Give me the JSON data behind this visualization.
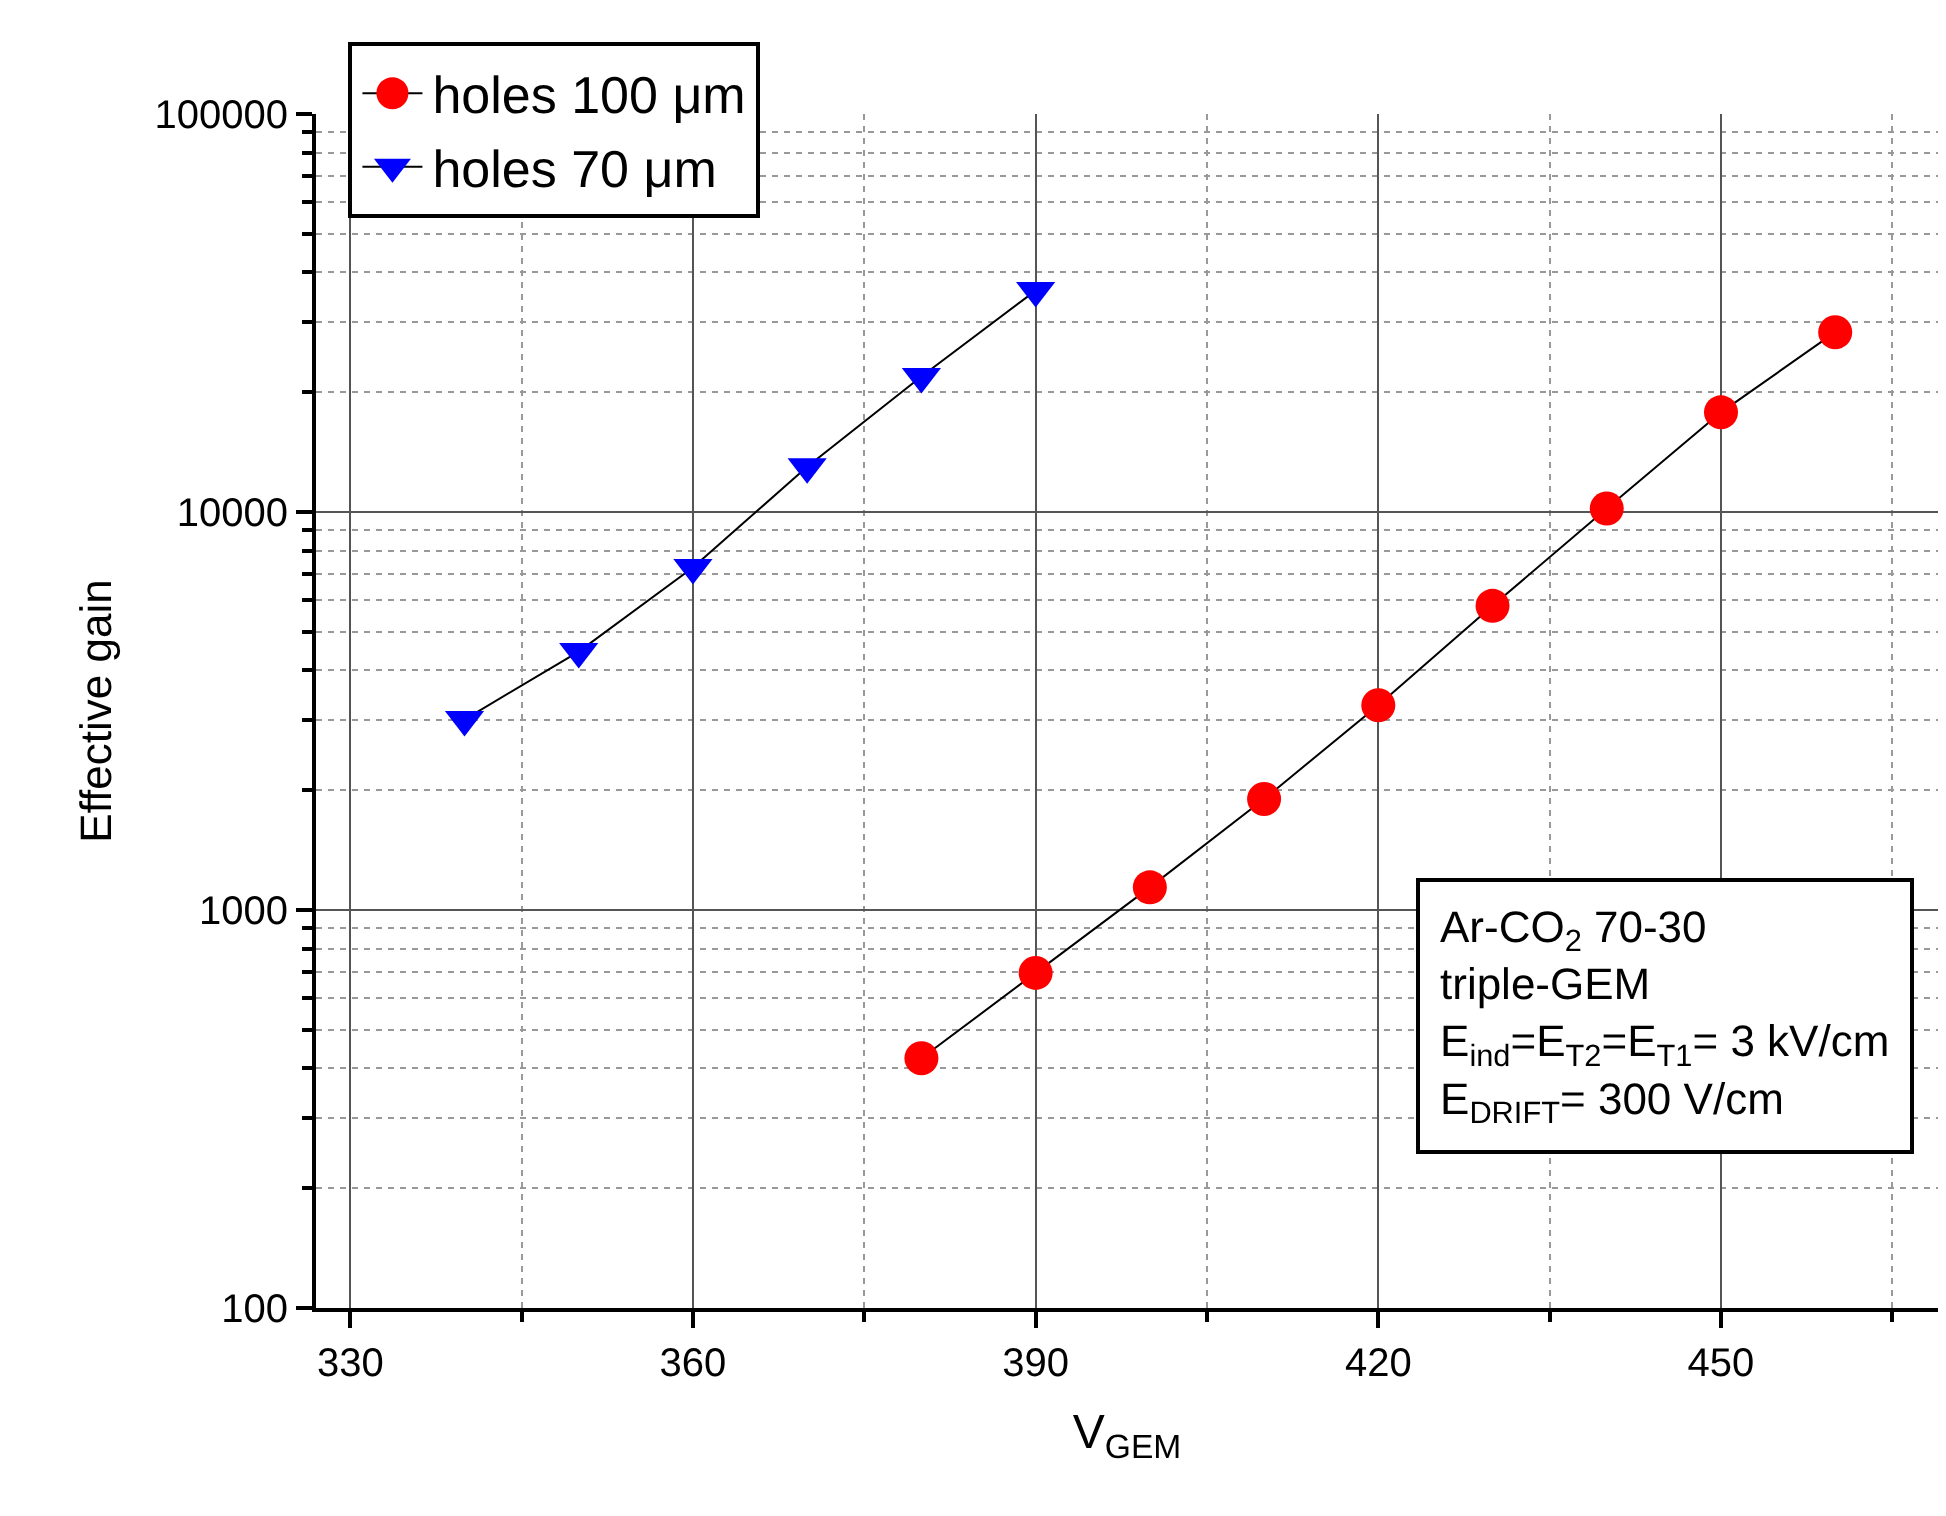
{
  "chart_data": {
    "type": "line",
    "xlabel": "V$_{GEM}$",
    "ylabel": "Effective gain",
    "series": [
      {
        "name": "holes 100 μm",
        "color": "#ff0000",
        "marker": "circle",
        "x": [
          380,
          390,
          400,
          410,
          420,
          430,
          440,
          450,
          460
        ],
        "values": [
          424,
          695,
          1140,
          1900,
          3270,
          5810,
          10200,
          17800,
          28300
        ]
      },
      {
        "name": "holes 70 μm",
        "color": "#0000ff",
        "marker": "triangle",
        "x": [
          340,
          350,
          360,
          370,
          380,
          390
        ],
        "values": [
          3010,
          4460,
          7250,
          13000,
          21900,
          36000
        ]
      }
    ],
    "log": "y",
    "xlim": [
      327,
      469
    ],
    "xticks": [
      330,
      360,
      390,
      420,
      450
    ],
    "ylim": [
      100,
      100000
    ],
    "yticks": [
      100,
      1000,
      10000,
      100000
    ],
    "grid": true,
    "legend": "top left",
    "annotations": [
      "Ar-CO$_{2}$ 70-30",
      "triple-GEM",
      "E$_{ind}$=E$_{T2}$=E$_{T1}$= 3 kV/cm",
      "E$_{DRIFT}$= 300 V/cm"
    ]
  }
}
